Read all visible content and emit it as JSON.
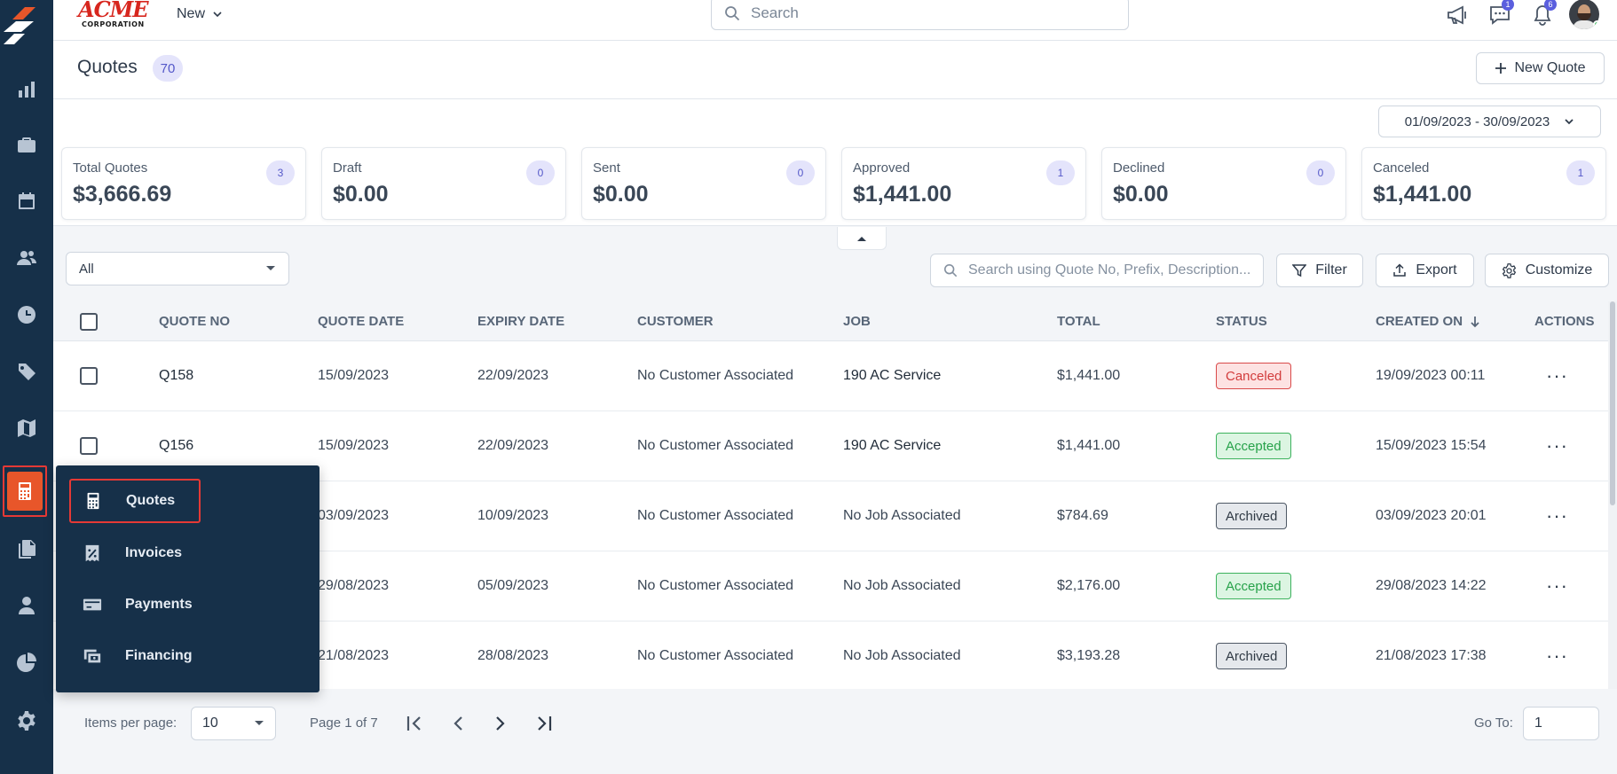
{
  "topbar": {
    "brand_big": "ACME",
    "brand_small": "CORPORATION",
    "new_label": "New",
    "search_placeholder": "Search",
    "chat_badge": "1",
    "notifications_badge": "6"
  },
  "page": {
    "title": "Quotes",
    "count": "70",
    "new_quote_label": "New Quote",
    "date_range": "01/09/2023 - 30/09/2023"
  },
  "stats": [
    {
      "label": "Total Quotes",
      "value": "$3,666.69",
      "count": "3"
    },
    {
      "label": "Draft",
      "value": "$0.00",
      "count": "0"
    },
    {
      "label": "Sent",
      "value": "$0.00",
      "count": "0"
    },
    {
      "label": "Approved",
      "value": "$1,441.00",
      "count": "1"
    },
    {
      "label": "Declined",
      "value": "$0.00",
      "count": "0"
    },
    {
      "label": "Canceled",
      "value": "$1,441.00",
      "count": "1"
    }
  ],
  "filters": {
    "view_select": "All",
    "search_placeholder": "Search using Quote No, Prefix, Description...",
    "filter_label": "Filter",
    "export_label": "Export",
    "customize_label": "Customize"
  },
  "table": {
    "columns": {
      "quote_no": "QUOTE NO",
      "quote_date": "QUOTE DATE",
      "expiry_date": "EXPIRY DATE",
      "customer": "CUSTOMER",
      "job": "JOB",
      "total": "TOTAL",
      "status": "STATUS",
      "created_on": "CREATED ON",
      "actions": "ACTIONS"
    },
    "rows": [
      {
        "quote_no": "Q158",
        "quote_date": "15/09/2023",
        "expiry_date": "22/09/2023",
        "customer": "No Customer Associated",
        "job": "190 AC Service",
        "total": "$1,441.00",
        "status": "Canceled",
        "created_on": "19/09/2023 00:11"
      },
      {
        "quote_no": "Q156",
        "quote_date": "15/09/2023",
        "expiry_date": "22/09/2023",
        "customer": "No Customer Associated",
        "job": "190 AC Service",
        "total": "$1,441.00",
        "status": "Accepted",
        "created_on": "15/09/2023 15:54"
      },
      {
        "quote_no": "",
        "quote_date": "03/09/2023",
        "expiry_date": "10/09/2023",
        "customer": "No Customer Associated",
        "job": "No Job Associated",
        "total": "$784.69",
        "status": "Archived",
        "created_on": "03/09/2023 20:01"
      },
      {
        "quote_no": "",
        "quote_date": "29/08/2023",
        "expiry_date": "05/09/2023",
        "customer": "No Customer Associated",
        "job": "No Job Associated",
        "total": "$2,176.00",
        "status": "Accepted",
        "created_on": "29/08/2023 14:22"
      },
      {
        "quote_no": "",
        "quote_date": "21/08/2023",
        "expiry_date": "28/08/2023",
        "customer": "No Customer Associated",
        "job": "No Job Associated",
        "total": "$3,193.28",
        "status": "Archived",
        "created_on": "21/08/2023 17:38"
      }
    ]
  },
  "pagination": {
    "items_per_page_label": "Items per page:",
    "items_per_page": "10",
    "page_text": "Page 1 of 7",
    "goto_label": "Go To:",
    "goto_value": "1"
  },
  "flyout": {
    "items": [
      {
        "label": "Quotes",
        "icon": "calculator-icon"
      },
      {
        "label": "Invoices",
        "icon": "receipt-percent-icon"
      },
      {
        "label": "Payments",
        "icon": "credit-card-icon"
      },
      {
        "label": "Financing",
        "icon": "financing-icon"
      }
    ]
  },
  "sidebar_icons": [
    "reports-icon",
    "briefcase-icon",
    "calendar-icon",
    "users-icon",
    "clock-icon",
    "tag-icon",
    "map-icon",
    "calculator-icon",
    "documents-icon",
    "user-icon",
    "pie-chart-icon",
    "settings-icon"
  ],
  "colors": {
    "rail": "#163049",
    "accent": "#e8562a",
    "highlight_border": "#e53935",
    "badge": "#5458c9"
  }
}
